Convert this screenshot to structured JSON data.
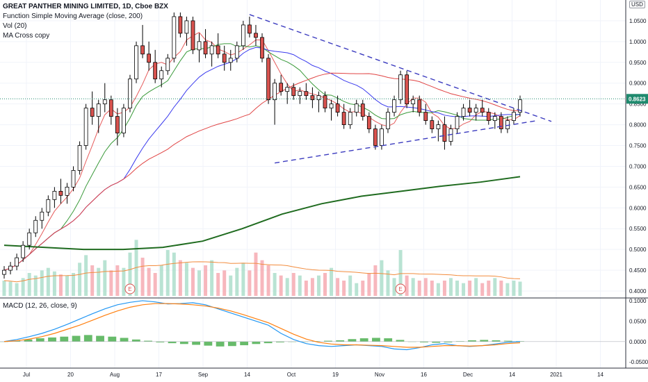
{
  "header": {
    "symbol_title": "GREAT PANTHER MINING LIMITED, 1D, Cboe BZX",
    "indicator_sma": "Function Simple Moving Average (close, 200)",
    "indicator_vol": "Vol (20)",
    "indicator_ma_cross": "MA Cross copy",
    "macd_label": "MACD (12, 26, close, 9)",
    "currency": "USD"
  },
  "colors": {
    "up_candle": "#ffffff",
    "candle_border": "#000000",
    "down_candle": "#d9534f",
    "vol_up": "#a8dcc8",
    "vol_down": "#f5a5ad",
    "ma_fast": "#e65b5b",
    "ma_mid": "#3a9a3a",
    "ma_slow": "#3a3aee",
    "ma_orange": "#f28b3c",
    "sma200": "#1f6b1f",
    "trendline": "#3b3bbf",
    "last_price": "#1f8a6e",
    "macd_line": "#2196f3",
    "signal_line": "#ff7f0e",
    "hist": "#4caf50"
  },
  "chart_data": {
    "type": "candlestick",
    "price_axis": {
      "ticks": [
        "1.0500",
        "1.0000",
        "0.9500",
        "0.9000",
        "0.8500",
        "0.8000",
        "0.7500",
        "0.7000",
        "0.6500",
        "0.6000",
        "0.5500",
        "0.5000",
        "0.4500",
        "0.4000"
      ],
      "range": [
        0.385,
        1.1
      ]
    },
    "last_price": "0.8623",
    "macd_axis": {
      "ticks": [
        "0.1000",
        "0.0500",
        "0.0000",
        "-0.0500"
      ],
      "range": [
        -0.065,
        0.105
      ]
    },
    "x_labels": [
      "Jul",
      "20",
      "Aug",
      "17",
      "Sep",
      "14",
      "Oct",
      "19",
      "Nov",
      "16",
      "Dec",
      "14",
      "2021",
      "14"
    ],
    "candles": [
      [
        0.44,
        0.46,
        0.43,
        0.45
      ],
      [
        0.45,
        0.47,
        0.44,
        0.46
      ],
      [
        0.46,
        0.49,
        0.45,
        0.48
      ],
      [
        0.48,
        0.52,
        0.47,
        0.51
      ],
      [
        0.51,
        0.55,
        0.5,
        0.54
      ],
      [
        0.54,
        0.58,
        0.53,
        0.57
      ],
      [
        0.57,
        0.6,
        0.55,
        0.59
      ],
      [
        0.59,
        0.63,
        0.58,
        0.62
      ],
      [
        0.62,
        0.65,
        0.6,
        0.64
      ],
      [
        0.64,
        0.67,
        0.61,
        0.63
      ],
      [
        0.63,
        0.66,
        0.61,
        0.65
      ],
      [
        0.65,
        0.7,
        0.64,
        0.69
      ],
      [
        0.69,
        0.76,
        0.68,
        0.75
      ],
      [
        0.75,
        0.85,
        0.74,
        0.84
      ],
      [
        0.84,
        0.88,
        0.8,
        0.82
      ],
      [
        0.82,
        0.86,
        0.78,
        0.85
      ],
      [
        0.85,
        0.9,
        0.83,
        0.86
      ],
      [
        0.86,
        0.87,
        0.8,
        0.82
      ],
      [
        0.82,
        0.84,
        0.75,
        0.78
      ],
      [
        0.78,
        0.85,
        0.77,
        0.84
      ],
      [
        0.84,
        0.92,
        0.83,
        0.91
      ],
      [
        0.91,
        1.0,
        0.9,
        0.99
      ],
      [
        0.99,
        1.04,
        0.96,
        0.97
      ],
      [
        0.97,
        1.0,
        0.93,
        0.95
      ],
      [
        0.95,
        0.98,
        0.9,
        0.91
      ],
      [
        0.91,
        0.94,
        0.89,
        0.93
      ],
      [
        0.93,
        0.97,
        0.92,
        0.96
      ],
      [
        0.96,
        1.07,
        0.95,
        1.06
      ],
      [
        1.06,
        1.07,
        1.01,
        1.02
      ],
      [
        1.02,
        1.06,
        0.99,
        1.05
      ],
      [
        1.05,
        1.06,
        0.97,
        0.98
      ],
      [
        0.98,
        1.02,
        0.95,
        1.0
      ],
      [
        1.0,
        1.03,
        0.96,
        0.97
      ],
      [
        0.97,
        1.0,
        0.94,
        0.99
      ],
      [
        0.99,
        1.02,
        0.96,
        0.97
      ],
      [
        0.97,
        0.99,
        0.93,
        0.95
      ],
      [
        0.95,
        0.98,
        0.93,
        0.96
      ],
      [
        0.96,
        1.0,
        0.95,
        0.99
      ],
      [
        0.99,
        1.05,
        0.98,
        1.04
      ],
      [
        1.04,
        1.06,
        1.01,
        1.02
      ],
      [
        1.02,
        1.04,
        0.99,
        1.01
      ],
      [
        1.01,
        1.02,
        0.95,
        0.96
      ],
      [
        0.96,
        0.97,
        0.85,
        0.86
      ],
      [
        0.86,
        0.91,
        0.8,
        0.9
      ],
      [
        0.9,
        0.92,
        0.87,
        0.88
      ],
      [
        0.88,
        0.9,
        0.85,
        0.89
      ],
      [
        0.89,
        0.9,
        0.86,
        0.87
      ],
      [
        0.87,
        0.89,
        0.85,
        0.88
      ],
      [
        0.88,
        0.9,
        0.86,
        0.87
      ],
      [
        0.87,
        0.89,
        0.84,
        0.86
      ],
      [
        0.86,
        0.88,
        0.83,
        0.87
      ],
      [
        0.87,
        0.88,
        0.83,
        0.84
      ],
      [
        0.84,
        0.86,
        0.81,
        0.85
      ],
      [
        0.85,
        0.87,
        0.82,
        0.83
      ],
      [
        0.83,
        0.85,
        0.79,
        0.8
      ],
      [
        0.8,
        0.84,
        0.79,
        0.83
      ],
      [
        0.83,
        0.86,
        0.82,
        0.85
      ],
      [
        0.85,
        0.86,
        0.81,
        0.82
      ],
      [
        0.82,
        0.83,
        0.78,
        0.79
      ],
      [
        0.79,
        0.8,
        0.74,
        0.75
      ],
      [
        0.75,
        0.8,
        0.74,
        0.79
      ],
      [
        0.79,
        0.84,
        0.78,
        0.83
      ],
      [
        0.83,
        0.87,
        0.82,
        0.86
      ],
      [
        0.86,
        0.93,
        0.85,
        0.92
      ],
      [
        0.92,
        0.93,
        0.84,
        0.85
      ],
      [
        0.85,
        0.87,
        0.83,
        0.86
      ],
      [
        0.86,
        0.87,
        0.82,
        0.83
      ],
      [
        0.83,
        0.85,
        0.8,
        0.81
      ],
      [
        0.81,
        0.82,
        0.78,
        0.79
      ],
      [
        0.79,
        0.81,
        0.76,
        0.8
      ],
      [
        0.8,
        0.82,
        0.74,
        0.76
      ],
      [
        0.76,
        0.8,
        0.75,
        0.79
      ],
      [
        0.79,
        0.83,
        0.78,
        0.82
      ],
      [
        0.82,
        0.85,
        0.81,
        0.84
      ],
      [
        0.84,
        0.86,
        0.82,
        0.83
      ],
      [
        0.83,
        0.85,
        0.81,
        0.84
      ],
      [
        0.84,
        0.86,
        0.82,
        0.83
      ],
      [
        0.83,
        0.84,
        0.8,
        0.81
      ],
      [
        0.81,
        0.83,
        0.79,
        0.82
      ],
      [
        0.82,
        0.83,
        0.78,
        0.79
      ],
      [
        0.79,
        0.82,
        0.78,
        0.81
      ],
      [
        0.81,
        0.84,
        0.8,
        0.83
      ],
      [
        0.83,
        0.87,
        0.82,
        0.86
      ]
    ],
    "volume_range": [
      0,
      1.5
    ],
    "volumes": [
      0.3,
      0.28,
      0.25,
      0.35,
      0.45,
      0.4,
      0.5,
      0.55,
      0.48,
      0.42,
      0.4,
      0.45,
      0.65,
      0.8,
      0.6,
      0.55,
      0.7,
      0.5,
      0.6,
      0.55,
      0.85,
      1.1,
      0.75,
      0.55,
      0.45,
      0.6,
      0.9,
      0.85,
      0.7,
      0.65,
      0.55,
      0.5,
      0.6,
      0.7,
      0.45,
      0.5,
      0.4,
      0.55,
      0.65,
      0.5,
      0.85,
      0.7,
      0.6,
      0.45,
      0.4,
      0.35,
      0.45,
      0.4,
      0.3,
      0.35,
      0.4,
      0.45,
      0.55,
      0.35,
      0.3,
      0.4,
      0.25,
      0.3,
      0.45,
      0.6,
      0.7,
      0.5,
      0.35,
      0.9,
      0.4,
      0.35,
      0.3,
      0.35,
      0.3,
      0.25,
      0.3,
      0.35,
      0.3,
      0.25,
      0.3,
      0.35,
      0.25,
      0.3,
      0.35,
      0.3,
      0.25,
      0.3,
      0.28
    ],
    "sma200": [
      0.51,
      0.505,
      0.5,
      0.5,
      0.505,
      0.52,
      0.55,
      0.585,
      0.61,
      0.628,
      0.64,
      0.652,
      0.662,
      0.675
    ],
    "macd": [
      0.0,
      0.005,
      0.012,
      0.02,
      0.03,
      0.042,
      0.055,
      0.068,
      0.08,
      0.09,
      0.096,
      0.1,
      0.097,
      0.092,
      0.093,
      0.095,
      0.09,
      0.08,
      0.07,
      0.06,
      0.05,
      0.04,
      0.02,
      0.005,
      -0.005,
      -0.01,
      -0.012,
      -0.01,
      -0.008,
      -0.01,
      -0.012,
      -0.018,
      -0.02,
      -0.015,
      -0.008,
      -0.005,
      -0.01,
      -0.012,
      -0.01,
      -0.006,
      -0.002,
      0.0
    ],
    "signal": [
      0.0,
      0.002,
      0.006,
      0.012,
      0.02,
      0.03,
      0.04,
      0.052,
      0.064,
      0.075,
      0.084,
      0.09,
      0.093,
      0.093,
      0.092,
      0.09,
      0.087,
      0.082,
      0.075,
      0.066,
      0.056,
      0.046,
      0.032,
      0.018,
      0.006,
      -0.002,
      -0.006,
      -0.008,
      -0.008,
      -0.009,
      -0.01,
      -0.012,
      -0.014,
      -0.014,
      -0.012,
      -0.01,
      -0.01,
      -0.011,
      -0.01,
      -0.008,
      -0.005,
      -0.003
    ],
    "histogram": [
      0.0,
      0.002,
      0.005,
      0.008,
      0.01,
      0.012,
      0.014,
      0.016,
      0.014,
      0.012,
      0.009,
      0.005,
      0.002,
      -0.002,
      -0.004,
      -0.006,
      -0.008,
      -0.01,
      -0.012,
      -0.011,
      -0.009,
      -0.006,
      -0.004,
      -0.002,
      -0.001,
      0.0,
      0.001,
      0.002,
      0.003,
      0.006,
      0.008,
      0.009,
      0.008,
      0.004,
      0.0,
      -0.002,
      -0.003,
      -0.002,
      0.001,
      0.003,
      0.004,
      0.003,
      0.002,
      0.001
    ]
  }
}
